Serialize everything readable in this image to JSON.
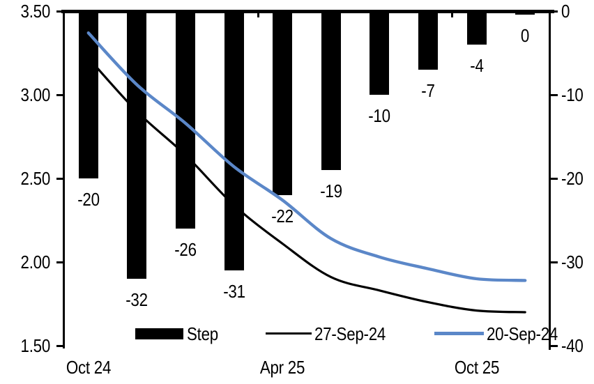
{
  "chart_data": {
    "type": "combo-bar-line-dual-axis",
    "title": "",
    "grid": false,
    "n_categories": 10,
    "x_tick_labels": [
      {
        "label": "Oct 24",
        "category_index": 0
      },
      {
        "label": "Apr 25",
        "category_index": 4
      },
      {
        "label": "Oct 25",
        "category_index": 8
      }
    ],
    "left_axis": {
      "max": 3.5,
      "min": 1.5,
      "ticks": [
        "3.50",
        "3.00",
        "2.50",
        "2.00",
        "1.50"
      ]
    },
    "right_axis": {
      "max": 0,
      "min": -40,
      "ticks": [
        "0",
        "-10",
        "-20",
        "-30",
        "-40"
      ]
    },
    "top_axis_tick_boundaries": [
      4,
      8
    ],
    "bar_series": {
      "name": "Step",
      "axis": "right",
      "color": "#000000",
      "values": [
        -20,
        -32,
        -26,
        -31,
        -22,
        -19,
        -10,
        -7,
        -4,
        0
      ],
      "data_labels": [
        "-20",
        "-32",
        "-26",
        "-31",
        "-22",
        "-19",
        "-10",
        "-7",
        "-4",
        "0"
      ]
    },
    "line_series": [
      {
        "name": "27-Sep-24",
        "axis": "left",
        "color": "#000000",
        "values": [
          3.22,
          2.9,
          2.64,
          2.34,
          2.11,
          1.91,
          1.83,
          1.76,
          1.71,
          1.7
        ]
      },
      {
        "name": "20-Sep-24",
        "axis": "left",
        "color": "#5B87C8",
        "values": [
          3.37,
          3.06,
          2.83,
          2.57,
          2.37,
          2.14,
          2.03,
          1.96,
          1.9,
          1.89
        ]
      }
    ],
    "legend_position": "bottom-inside",
    "legend": [
      {
        "label": "Step",
        "type": "bar",
        "color": "#000000"
      },
      {
        "label": "27-Sep-24",
        "type": "line",
        "color": "#000000"
      },
      {
        "label": "20-Sep-24",
        "type": "line",
        "color": "#5B87C8"
      }
    ]
  }
}
